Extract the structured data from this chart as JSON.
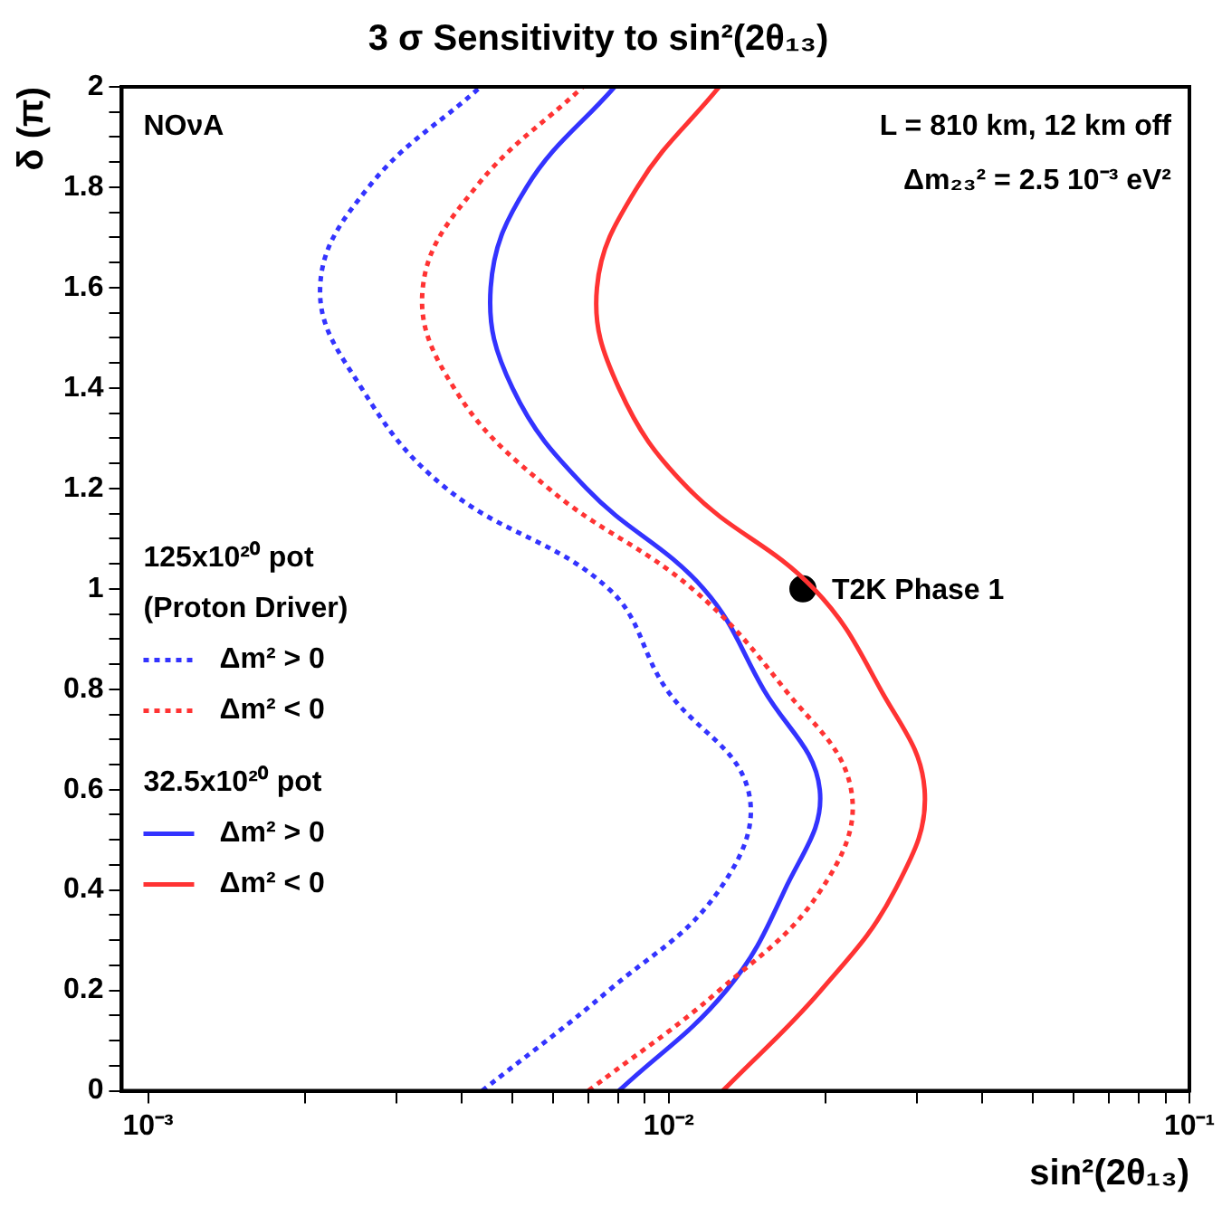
{
  "chart_data": {
    "type": "line",
    "title": "3 σ Sensitivity to sin²(2θ₁₃)",
    "xlabel": "sin²(2θ₁₃)",
    "ylabel": "δ (π)",
    "log": "x",
    "xlim": [
      0.00089,
      0.1
    ],
    "ylim": [
      0,
      2
    ],
    "xticks": [
      {
        "value": 0.001,
        "label": "10⁻³"
      },
      {
        "value": 0.002,
        "label": null
      },
      {
        "value": 0.003,
        "label": null
      },
      {
        "value": 0.004,
        "label": null
      },
      {
        "value": 0.005,
        "label": null
      },
      {
        "value": 0.006,
        "label": null
      },
      {
        "value": 0.007,
        "label": null
      },
      {
        "value": 0.008,
        "label": null
      },
      {
        "value": 0.009,
        "label": null
      },
      {
        "value": 0.01,
        "label": "10⁻²"
      },
      {
        "value": 0.02,
        "label": null
      },
      {
        "value": 0.03,
        "label": null
      },
      {
        "value": 0.04,
        "label": null
      },
      {
        "value": 0.05,
        "label": null
      },
      {
        "value": 0.06,
        "label": null
      },
      {
        "value": 0.07,
        "label": null
      },
      {
        "value": 0.08,
        "label": null
      },
      {
        "value": 0.09,
        "label": null
      },
      {
        "value": 0.1,
        "label": "10⁻¹"
      }
    ],
    "yticks": [
      0,
      0.2,
      0.4,
      0.6,
      0.8,
      1,
      1.2,
      1.4,
      1.6,
      1.8,
      2,
      {
        "value": 0.05,
        "label": null
      },
      {
        "value": 0.1,
        "label": null
      },
      {
        "value": 0.15,
        "label": null
      },
      {
        "value": 0.25,
        "label": null
      },
      {
        "value": 0.3,
        "label": null
      },
      {
        "value": 0.35,
        "label": null
      },
      {
        "value": 0.45,
        "label": null
      },
      {
        "value": 0.5,
        "label": null
      },
      {
        "value": 0.55,
        "label": null
      },
      {
        "value": 0.65,
        "label": null
      },
      {
        "value": 0.7,
        "label": null
      },
      {
        "value": 0.75,
        "label": null
      },
      {
        "value": 0.85,
        "label": null
      },
      {
        "value": 0.9,
        "label": null
      },
      {
        "value": 0.95,
        "label": null
      },
      {
        "value": 1.05,
        "label": null
      },
      {
        "value": 1.1,
        "label": null
      },
      {
        "value": 1.15,
        "label": null
      },
      {
        "value": 1.25,
        "label": null
      },
      {
        "value": 1.3,
        "label": null
      },
      {
        "value": 1.35,
        "label": null
      },
      {
        "value": 1.45,
        "label": null
      },
      {
        "value": 1.5,
        "label": null
      },
      {
        "value": 1.55,
        "label": null
      },
      {
        "value": 1.65,
        "label": null
      },
      {
        "value": 1.7,
        "label": null
      },
      {
        "value": 1.75,
        "label": null
      },
      {
        "value": 1.85,
        "label": null
      },
      {
        "value": 1.9,
        "label": null
      },
      {
        "value": 1.95,
        "label": null
      }
    ],
    "grid": false,
    "legend": "left",
    "series": [
      {
        "name": "Δm² > 0",
        "color": "#3333ff",
        "line_style": "dotted",
        "x": [
          0.00438,
          0.00767,
          0.0125,
          0.0142,
          0.0099,
          0.00767,
          0.00374,
          0.00257,
          0.00214,
          0.00265,
          0.00435
        ],
        "values": [
          0,
          0.2,
          0.4,
          0.6,
          0.8,
          1,
          1.2,
          1.4,
          1.6,
          1.8,
          2
        ]
      },
      {
        "name": "Δm² < 0",
        "color": "#ff3333",
        "line_style": "dotted",
        "x": [
          0.00701,
          0.0125,
          0.0196,
          0.0224,
          0.0167,
          0.0111,
          0.00588,
          0.00387,
          0.00337,
          0.00426,
          0.00684
        ],
        "values": [
          0,
          0.2,
          0.4,
          0.6,
          0.8,
          1,
          1.2,
          1.4,
          1.6,
          1.8,
          2
        ]
      },
      {
        "name": "Δm² > 0",
        "color": "#3333ff",
        "line_style": "solid",
        "x": [
          0.00802,
          0.0129,
          0.0167,
          0.0195,
          0.0152,
          0.01167,
          0.00695,
          0.00501,
          0.00455,
          0.00533,
          0.00787
        ],
        "values": [
          0,
          0.2,
          0.4,
          0.6,
          0.8,
          1,
          1.2,
          1.4,
          1.6,
          1.8,
          2
        ]
      },
      {
        "name": "Δm² < 0",
        "color": "#ff3333",
        "line_style": "solid",
        "x": [
          0.0127,
          0.0196,
          0.0272,
          0.031,
          0.0255,
          0.019,
          0.0109,
          0.00802,
          0.00728,
          0.0087,
          0.0125
        ],
        "values": [
          0,
          0.2,
          0.4,
          0.6,
          0.8,
          1,
          1.2,
          1.4,
          1.6,
          1.8,
          2
        ]
      },
      {
        "name": "T2K Phase 1",
        "type": "scatter",
        "marker": "circle",
        "color": "#000000",
        "x": [
          0.0181
        ],
        "values": [
          1
        ]
      }
    ],
    "annotations": [
      "125x10²⁰ pot",
      "(Proton Driver)",
      "32.5x10²⁰ pot",
      "NOνA",
      "L = 810 km, 12 km off",
      "Δm₂₃² = 2.5 10⁻³ eV²"
    ]
  }
}
